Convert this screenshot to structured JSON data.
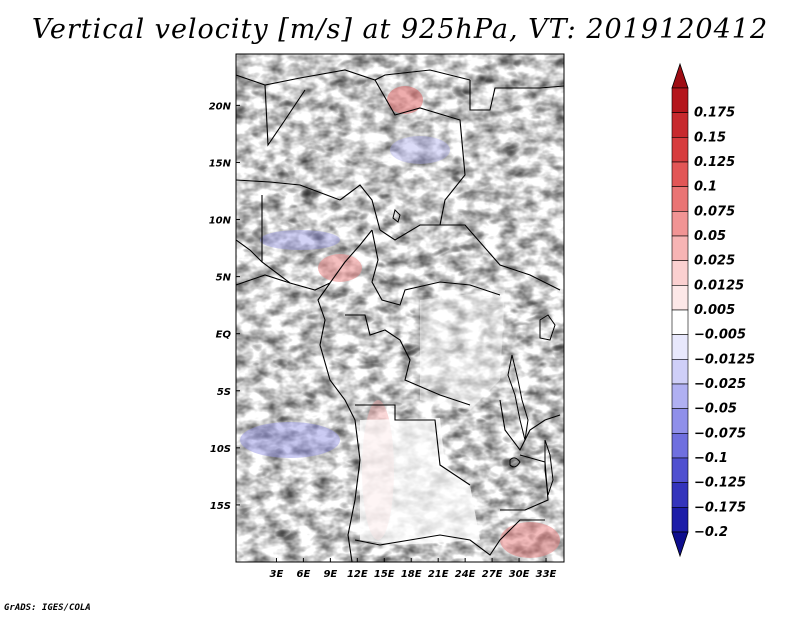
{
  "title": "Vertical velocity [m/s] at 925hPa, VT: 2019120412",
  "credit": "GrADS: IGES/COLA",
  "map": {
    "lon_range": [
      -1.5,
      35
    ],
    "lat_range": [
      -20,
      24.5
    ],
    "lon_ticks": [
      {
        "value": 3,
        "label": "3E"
      },
      {
        "value": 6,
        "label": "6E"
      },
      {
        "value": 9,
        "label": "9E"
      },
      {
        "value": 12,
        "label": "12E"
      },
      {
        "value": 15,
        "label": "15E"
      },
      {
        "value": 18,
        "label": "18E"
      },
      {
        "value": 21,
        "label": "21E"
      },
      {
        "value": 24,
        "label": "24E"
      },
      {
        "value": 27,
        "label": "27E"
      },
      {
        "value": 30,
        "label": "30E"
      },
      {
        "value": 33,
        "label": "33E"
      }
    ],
    "lat_ticks": [
      {
        "value": 20,
        "label": "20N"
      },
      {
        "value": 15,
        "label": "15N"
      },
      {
        "value": 10,
        "label": "10N"
      },
      {
        "value": 5,
        "label": "5N"
      },
      {
        "value": 0,
        "label": "EQ"
      },
      {
        "value": -5,
        "label": "5S"
      },
      {
        "value": -10,
        "label": "10S"
      },
      {
        "value": -15,
        "label": "15S"
      }
    ]
  },
  "colorbar": {
    "levels": [
      {
        "label": "0.175",
        "color": "#b4161c"
      },
      {
        "label": "0.15",
        "color": "#c72a2e"
      },
      {
        "label": "0.125",
        "color": "#d73c3e"
      },
      {
        "label": "0.1",
        "color": "#e25656"
      },
      {
        "label": "0.075",
        "color": "#ea7474"
      },
      {
        "label": "0.05",
        "color": "#f19494"
      },
      {
        "label": "0.025",
        "color": "#f7b4b4"
      },
      {
        "label": "0.0125",
        "color": "#fbd0d0"
      },
      {
        "label": "0.005",
        "color": "#fde8e8"
      },
      {
        "label": "-0.005",
        "color": "#ffffff"
      },
      {
        "label": "-0.0125",
        "color": "#e8e8fc"
      },
      {
        "label": "-0.025",
        "color": "#cfcff8"
      },
      {
        "label": "-0.05",
        "color": "#b0b0f2"
      },
      {
        "label": "-0.075",
        "color": "#9090ea"
      },
      {
        "label": "-0.1",
        "color": "#6f6fdf"
      },
      {
        "label": "-0.125",
        "color": "#5050d0"
      },
      {
        "label": "-0.175",
        "color": "#3434bc"
      },
      {
        "label": "-0.2",
        "color": "#1d1da8"
      }
    ],
    "top_arrow_color": "#9e0d14",
    "bottom_arrow_color": "#0e0e8e"
  }
}
